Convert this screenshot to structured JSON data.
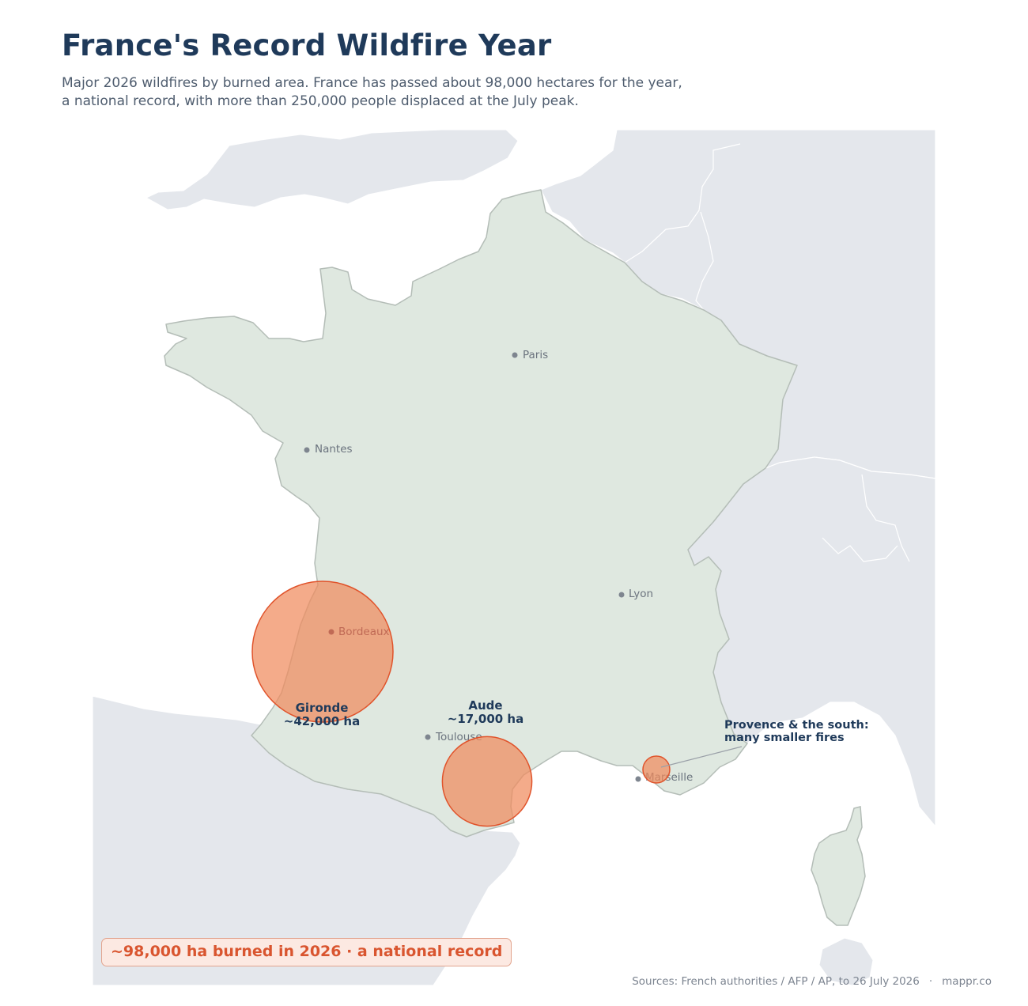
{
  "title": "France's Record Wildfire Year",
  "subtitle": [
    "Major 2026 wildfires by burned area. France has passed about 98,000 hectares for the year,",
    "a national record, with more than 250,000 people displaced at the July peak."
  ],
  "colors": {
    "ocean": "#ffffff",
    "france_land": "#dfe8e0",
    "france_border": "#b4bdb7",
    "neighbor_land": "#e4e7ec",
    "fire_fill": "#f08a5d",
    "fire_stroke": "#e0532b",
    "title": "#1f3a5a",
    "callout_text": "#d9552f",
    "city": "#6b737e"
  },
  "cities": [
    {
      "name": "Paris"
    },
    {
      "name": "Nantes"
    },
    {
      "name": "Lyon"
    },
    {
      "name": "Bordeaux"
    },
    {
      "name": "Toulouse"
    },
    {
      "name": "Marseille"
    }
  ],
  "fires": [
    {
      "region": "Gironde",
      "burned": "~42,000 ha",
      "hectares": 42000
    },
    {
      "region": "Aude",
      "burned": "~17,000 ha",
      "hectares": 17000
    },
    {
      "region": "Provence & the south:",
      "burned": "many smaller fires"
    }
  ],
  "callout": "~98,000 ha burned in 2026  ·  a national record",
  "sources": {
    "text": "Sources: French authorities / AFP / AP, to 26 July 2026",
    "separator": "·",
    "credit": "mappr.co"
  }
}
